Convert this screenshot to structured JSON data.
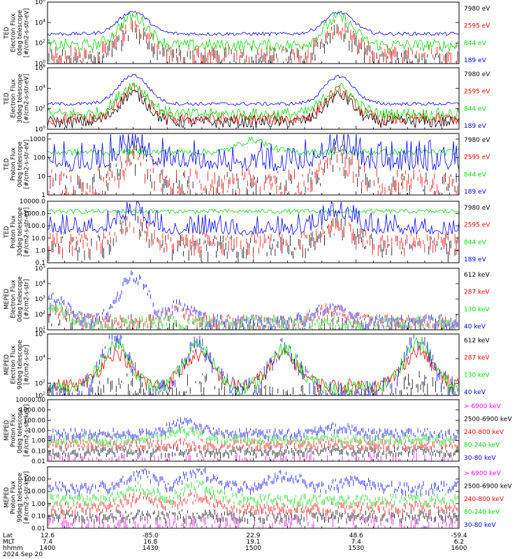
{
  "colors": {
    "black": "#000000",
    "red": "#ff0000",
    "green": "#00dd00",
    "blue": "#0000ff",
    "magenta": "#ff00ff"
  },
  "chart_data": [
    {
      "type": "line",
      "panel": 1,
      "ylabel_lines": [
        "TED",
        "Electron Flux",
        "0deg telescope",
        "[#/cm2-s-str-eV]"
      ],
      "yscale": "log",
      "ylim": [
        1,
        1000000
      ],
      "yticks": [
        "10^0",
        "10^2",
        "10^4",
        "10^6"
      ],
      "series": [
        {
          "name": "7980 eV",
          "color": "black",
          "level": 10,
          "style": "sparse",
          "peaks": [
            [
              1425,
              5500.0
            ],
            [
              1525,
              3000.0
            ]
          ]
        },
        {
          "name": "2595 eV",
          "color": "red",
          "level": 20,
          "style": "sparse",
          "peaks": [
            [
              1425,
              15000.0
            ],
            [
              1525,
              8000.0
            ]
          ]
        },
        {
          "name": "844 eV",
          "color": "green",
          "level": 60,
          "style": "noisy",
          "peaks": [
            [
              1425,
              40000.0
            ],
            [
              1525,
              30000.0
            ]
          ]
        },
        {
          "name": "189 eV",
          "color": "blue",
          "level": 800,
          "style": "line",
          "peaks": [
            [
              1425,
              120000.0
            ],
            [
              1525,
              100000.0
            ]
          ]
        }
      ]
    },
    {
      "type": "line",
      "panel": 2,
      "ylabel_lines": [
        "TED",
        "Electron Flux",
        "30deg telescope",
        "[#/cm2-s-str-eV]"
      ],
      "yscale": "log",
      "ylim": [
        1,
        1000000
      ],
      "yticks": [
        "10^0",
        "10^2",
        "10^4",
        "10^6"
      ],
      "series": [
        {
          "name": "7980 eV",
          "color": "black",
          "level": 5,
          "style": "noisy",
          "peaks": [
            [
              1425,
              3000.0
            ],
            [
              1525,
              2000.0
            ]
          ]
        },
        {
          "name": "2595 eV",
          "color": "red",
          "level": 10,
          "style": "noisy",
          "peaks": [
            [
              1425,
              8000.0
            ],
            [
              1525,
              5000.0
            ]
          ]
        },
        {
          "name": "844 eV",
          "color": "green",
          "level": 30,
          "style": "noisy",
          "peaks": [
            [
              1425,
              20000.0
            ],
            [
              1525,
              10000.0
            ]
          ]
        },
        {
          "name": "189 eV",
          "color": "blue",
          "level": 300,
          "style": "line",
          "peaks": [
            [
              1425,
              200000.0
            ],
            [
              1525,
              150000.0
            ]
          ]
        }
      ]
    },
    {
      "type": "line",
      "panel": 3,
      "ylabel_lines": [
        "TED",
        "Proton Flux",
        "0deg telescope",
        "[#/cm2-s-str-eV]"
      ],
      "yscale": "log",
      "ylim": [
        1,
        2000
      ],
      "yticks": [
        "1",
        "10",
        "100",
        "1000"
      ],
      "series": [
        {
          "name": "7980 eV",
          "color": "black",
          "level": 5,
          "style": "sparse",
          "peaks": [
            [
              1425,
              300
            ],
            [
              1525,
              200
            ]
          ]
        },
        {
          "name": "2595 eV",
          "color": "red",
          "level": 8,
          "style": "sparse",
          "peaks": [
            [
              1425,
              200
            ],
            [
              1525,
              150
            ]
          ]
        },
        {
          "name": "844 eV",
          "color": "green",
          "level": 200,
          "style": "line",
          "peaks": [
            [
              1500,
              900
            ]
          ]
        },
        {
          "name": "189 eV",
          "color": "blue",
          "level": 60,
          "style": "spiky",
          "peaks": [
            [
              1425,
              700
            ],
            [
              1525,
              600
            ]
          ]
        }
      ]
    },
    {
      "type": "line",
      "panel": 4,
      "ylabel_lines": [
        "TED",
        "Proton Flux",
        "30deg telescope",
        "[#/cm2-s-str-eV]"
      ],
      "yscale": "log",
      "ylim": [
        0.1,
        10000
      ],
      "yticks": [
        "0.1",
        "1.0",
        "10.0",
        "100.0",
        "1000.0",
        "10000.0"
      ],
      "series": [
        {
          "name": "7980 eV",
          "color": "black",
          "level": 5,
          "style": "sparse",
          "peaks": [
            [
              1425,
              400
            ],
            [
              1525,
              300
            ]
          ]
        },
        {
          "name": "2595 eV",
          "color": "red",
          "level": 10,
          "style": "sparse",
          "peaks": [
            [
              1425,
              300
            ],
            [
              1525,
              200
            ]
          ]
        },
        {
          "name": "844 eV",
          "color": "green",
          "level": 1500,
          "style": "line",
          "peaks": []
        },
        {
          "name": "189 eV",
          "color": "blue",
          "level": 60,
          "style": "spiky",
          "peaks": [
            [
              1425,
              1500
            ],
            [
              1525,
              1200
            ]
          ]
        }
      ]
    },
    {
      "type": "line",
      "panel": 5,
      "ylabel_lines": [
        "MEPED",
        "Electron Flux",
        "0deg telescope",
        "[#/cm2-s-str]"
      ],
      "yscale": "log",
      "ylim": [
        10,
        100000
      ],
      "yticks": [
        "10^1",
        "10^2",
        "10^3",
        "10^4",
        "10^5"
      ],
      "series": [
        {
          "name": "612 keV",
          "color": "black",
          "level": 30,
          "style": "sparse",
          "peaks": [
            [
              1402,
              150
            ]
          ]
        },
        {
          "name": "287 keV",
          "color": "red",
          "level": 30,
          "style": "band",
          "peaks": [
            [
              1402,
              200
            ],
            [
              1438,
              200
            ],
            [
              1522,
              150
            ]
          ]
        },
        {
          "name": "130 keV",
          "color": "green",
          "level": 25,
          "style": "band",
          "peaks": [
            [
              1402,
              300
            ]
          ]
        },
        {
          "name": "40 keV",
          "color": "blue",
          "level": 30,
          "style": "band",
          "peaks": [
            [
              1402,
              800
            ],
            [
              1425,
              30000.0
            ],
            [
              1438,
              300
            ],
            [
              1522,
              250
            ]
          ]
        }
      ]
    },
    {
      "type": "line",
      "panel": 6,
      "ylabel_lines": [
        "MEPED",
        "Electron Flux",
        "90deg telescope",
        "[#/cm2-s-str]"
      ],
      "yscale": "log",
      "ylim": [
        10,
        1000000
      ],
      "yticks": [
        "10^1",
        "10^2",
        "10^4",
        "10^6"
      ],
      "series": [
        {
          "name": "612 keV",
          "color": "black",
          "level": 20,
          "style": "sparse",
          "peaks": [
            [
              1420,
              400
            ],
            [
              1444,
              300
            ],
            [
              1548,
              300
            ]
          ]
        },
        {
          "name": "287 keV",
          "color": "red",
          "level": 60,
          "style": "noisy",
          "peaks": [
            [
              1420,
              30000.0
            ],
            [
              1444,
              20000.0
            ],
            [
              1509,
              20000.0
            ],
            [
              1548,
              40000.0
            ]
          ]
        },
        {
          "name": "130 keV",
          "color": "green",
          "level": 40,
          "style": "noisy",
          "peaks": [
            [
              1420,
              150000.0
            ],
            [
              1444,
              100000.0
            ],
            [
              1509,
              50000.0
            ],
            [
              1548,
              200000.0
            ]
          ]
        },
        {
          "name": "40 keV",
          "color": "blue",
          "level": 60,
          "style": "sparse",
          "peaks": [
            [
              1420,
              600000.0
            ],
            [
              1444,
              400000.0
            ],
            [
              1509,
              150000.0
            ],
            [
              1548,
              600000.0
            ]
          ]
        }
      ]
    },
    {
      "type": "line",
      "panel": 7,
      "ylabel_lines": [
        "MEPED",
        "Proton Flux",
        "0deg telescope",
        "[#/cm2-s-str-keV]"
      ],
      "yscale": "log",
      "ylim": [
        0.01,
        10000
      ],
      "yticks": [
        "0.01",
        "0.10",
        "1.00",
        "10.00",
        "100.00",
        "1000.00",
        "10000.00"
      ],
      "series": [
        {
          "name": "> 6900 keV",
          "color": "magenta",
          "level": 0.02,
          "style": "sparse",
          "peaks": []
        },
        {
          "name": "2500-6900 keV",
          "color": "black",
          "level": 0.1,
          "style": "band",
          "peaks": []
        },
        {
          "name": "240-800 keV",
          "color": "red",
          "level": 0.5,
          "style": "band",
          "peaks": []
        },
        {
          "name": "80-240 keV",
          "color": "green",
          "level": 1.5,
          "style": "band",
          "peaks": [
            [
              1440,
              10
            ]
          ]
        },
        {
          "name": "30-80 keV",
          "color": "blue",
          "level": 5,
          "style": "band",
          "peaks": [
            [
              1440,
              60
            ],
            [
              1525,
              20
            ]
          ]
        }
      ]
    },
    {
      "type": "line",
      "panel": 8,
      "ylabel_lines": [
        "MEPED",
        "Proton Flux",
        "90deg telescope",
        "[#/cm2-s-str-keV]"
      ],
      "yscale": "log",
      "ylim": [
        0.01,
        1000
      ],
      "yticks": [
        "0.01",
        "0.10",
        "1.00",
        "10.00",
        "100.00"
      ],
      "series": [
        {
          "name": "> 6900 keV",
          "color": "magenta",
          "level": 0.05,
          "style": "sparse",
          "peaks": []
        },
        {
          "name": "2500-6900 keV",
          "color": "black",
          "level": 0.1,
          "style": "band",
          "peaks": []
        },
        {
          "name": "240-800 keV",
          "color": "red",
          "level": 0.5,
          "style": "band",
          "peaks": [
            [
              1427,
              3
            ],
            [
              1444,
              3
            ]
          ]
        },
        {
          "name": "80-240 keV",
          "color": "green",
          "level": 2,
          "style": "band",
          "peaks": [
            [
              1427,
              20
            ],
            [
              1444,
              30
            ]
          ]
        },
        {
          "name": "30-80 keV",
          "color": "blue",
          "level": 20,
          "style": "band",
          "peaks": [
            [
              1427,
              250
            ],
            [
              1444,
              400
            ],
            [
              1509,
              200
            ],
            [
              1530,
              60
            ]
          ]
        }
      ]
    }
  ],
  "x_axis": {
    "range_hhmm": [
      1400,
      1600
    ],
    "row_labels": [
      "Lat",
      "MLT",
      "hhmm"
    ],
    "ticks": [
      {
        "lat": "12.6",
        "mlt": "7.4",
        "hhmm": "1400"
      },
      {
        "lat": "-85.0",
        "mlt": "16.8",
        "hhmm": "1430"
      },
      {
        "lat": "22.9",
        "mlt": "19.1",
        "hhmm": "1500"
      },
      {
        "lat": "48.6",
        "mlt": "7.4",
        "hhmm": "1530"
      },
      {
        "lat": "-59.4",
        "mlt": "6.2",
        "hhmm": "1600"
      }
    ],
    "date": "2024 Sep 20"
  }
}
